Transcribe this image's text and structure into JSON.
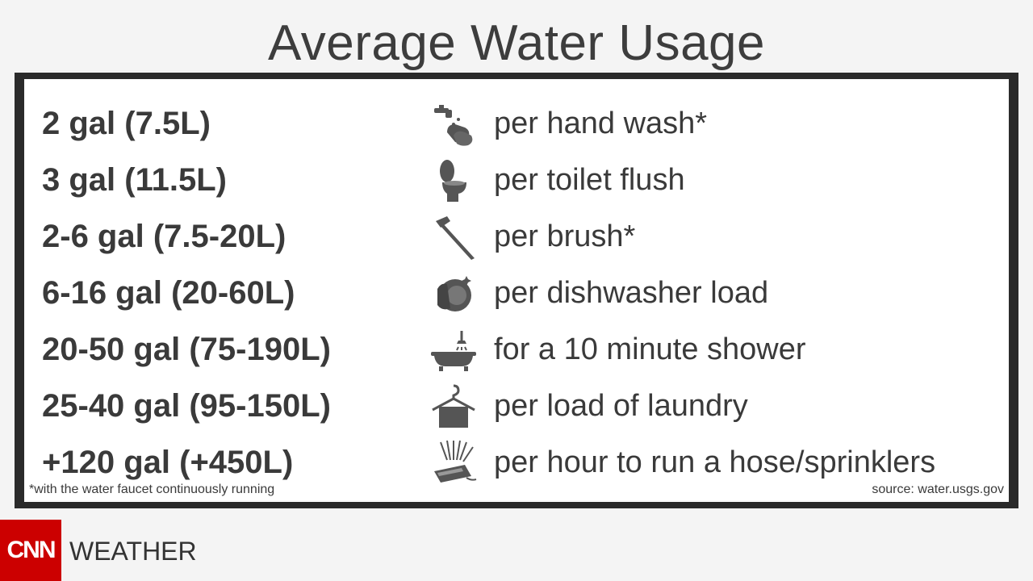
{
  "title": "Average Water Usage",
  "rows": [
    {
      "amount": "2 gal (7.5L)",
      "icon": "hand-wash-icon",
      "desc": "per hand wash*"
    },
    {
      "amount": "3 gal (11.5L)",
      "icon": "toilet-icon",
      "desc": "per toilet flush"
    },
    {
      "amount": "2-6 gal (7.5-20L)",
      "icon": "toothbrush-icon",
      "desc": "per brush*"
    },
    {
      "amount": "6-16 gal (20-60L)",
      "icon": "dishes-icon",
      "desc": "per dishwasher load"
    },
    {
      "amount": "20-50 gal (75-190L)",
      "icon": "bathtub-shower-icon",
      "desc": "for a 10 minute shower"
    },
    {
      "amount": "25-40 gal (95-150L)",
      "icon": "hanger-icon",
      "desc": "per load of laundry"
    },
    {
      "amount": "+120 gal (+450L)",
      "icon": "sprinkler-icon",
      "desc": "per hour to run a hose/sprinklers"
    }
  ],
  "footnote": "*with the water faucet continuously running",
  "source": "source: water.usgs.gov",
  "brand": {
    "logo_text": "CNN",
    "section": "WEATHER",
    "logo_color": "#cc0000"
  }
}
